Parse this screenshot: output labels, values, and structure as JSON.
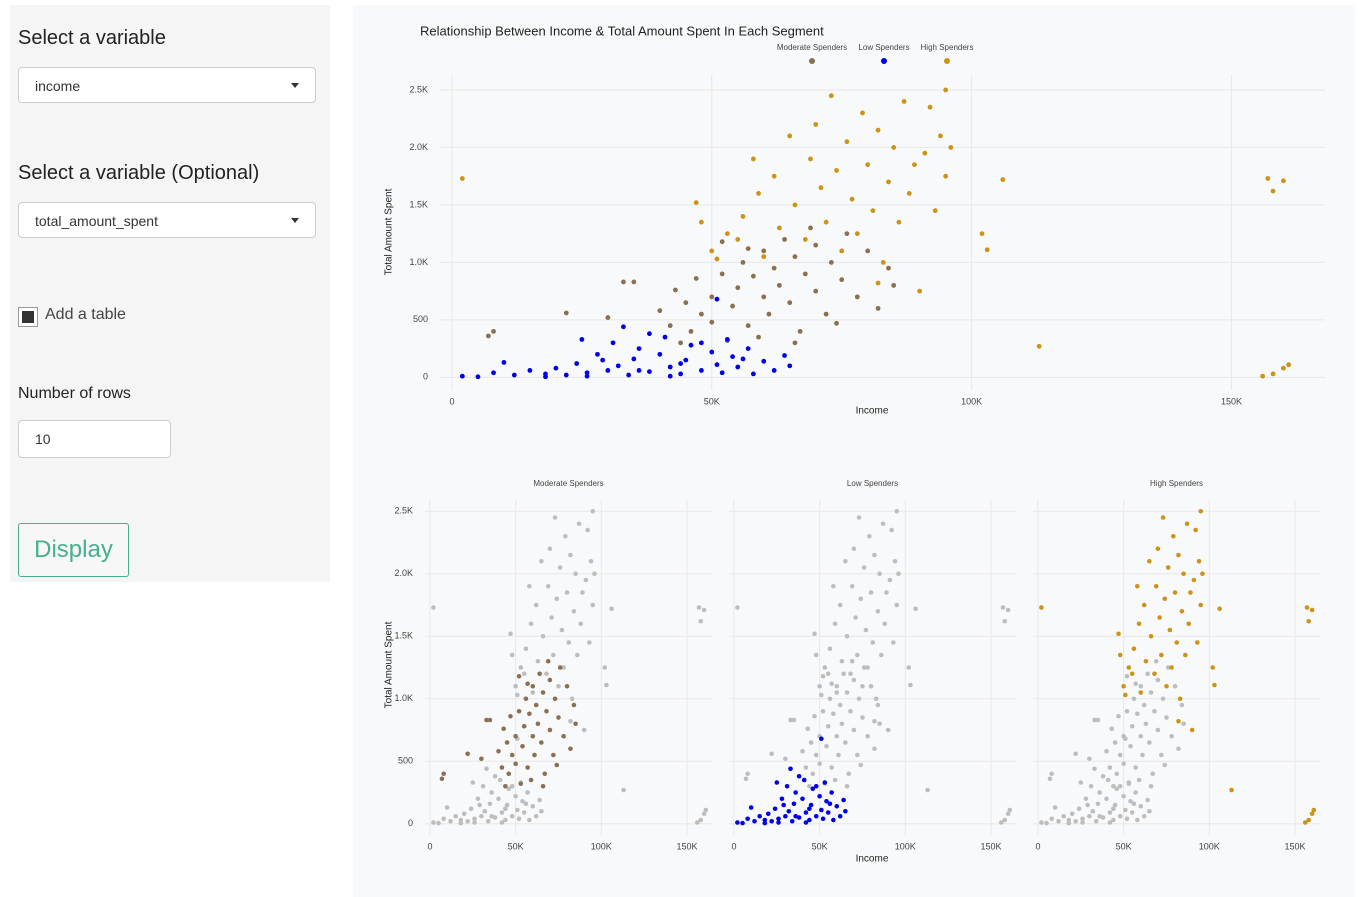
{
  "sidebar": {
    "variable_label": "Select a variable",
    "variable_value": "income",
    "optional_label": "Select a variable (Optional)",
    "optional_value": "total_amount_spent",
    "table_label": "Add a table",
    "table_checked": true,
    "rows_label": "Number of rows",
    "rows_value": 10,
    "button": "Display"
  },
  "chart_data": {
    "type": "scatter",
    "title": "Relationship Between Income & Total Amount Spent In Each Segment",
    "x_label": "Income",
    "y_label": "Total Amount Spent",
    "legend": "top",
    "grid": true,
    "xlim": [
      -2300,
      168000
    ],
    "ylim": [
      -110,
      2630
    ],
    "xticks": [
      0,
      {
        "value": 50000,
        "label": "50K"
      },
      {
        "value": 100000,
        "label": "100K"
      },
      {
        "value": 150000,
        "label": "150K"
      }
    ],
    "yticks": [
      0,
      500,
      {
        "value": 1000,
        "label": "1.0K"
      },
      {
        "value": 1500,
        "label": "1.5K"
      },
      {
        "value": 2000,
        "label": "2.0K"
      },
      {
        "value": 2500,
        "label": "2.5K"
      }
    ],
    "series": [
      {
        "name": "Moderate Spenders",
        "color": "#8b6f4e",
        "x": [
          8000,
          7000,
          22000,
          30000,
          33000,
          35000,
          40000,
          42000,
          44000,
          45000,
          46000,
          48000,
          50000,
          50000,
          52000,
          53000,
          54000,
          55000,
          56000,
          57000,
          58000,
          60000,
          60000,
          61000,
          62000,
          63000,
          64000,
          65000,
          66000,
          67000,
          68000,
          70000,
          70000,
          72000,
          73000,
          75000,
          76000,
          78000,
          80000,
          82000,
          84000,
          85000,
          57000,
          47000,
          43000,
          59000,
          69000,
          74000,
          52000,
          66000
        ],
        "y": [
          400,
          360,
          560,
          520,
          830,
          830,
          580,
          450,
          300,
          650,
          400,
          550,
          480,
          700,
          900,
          320,
          620,
          780,
          1000,
          450,
          880,
          700,
          1100,
          550,
          950,
          800,
          1200,
          650,
          1050,
          400,
          900,
          750,
          1150,
          550,
          1000,
          850,
          1250,
          700,
          1100,
          600,
          950,
          800,
          1120,
          860,
          760,
          350,
          1300,
          470,
          1180,
          300
        ]
      },
      {
        "name": "Low Spenders",
        "color": "#0000ee",
        "x": [
          2000,
          5000,
          8000,
          10000,
          12000,
          15000,
          18000,
          20000,
          22000,
          24000,
          26000,
          28000,
          30000,
          31000,
          32000,
          34000,
          35000,
          36000,
          38000,
          40000,
          41000,
          42000,
          44000,
          45000,
          46000,
          48000,
          50000,
          51000,
          52000,
          54000,
          55000,
          57000,
          58000,
          60000,
          62000,
          64000,
          65000,
          25000,
          38000,
          26000,
          33000,
          51000,
          44000,
          18000,
          56000,
          48000,
          29000,
          42000,
          36000,
          53000
        ],
        "y": [
          10,
          5,
          40,
          130,
          20,
          60,
          30,
          80,
          20,
          120,
          40,
          200,
          60,
          300,
          100,
          20,
          160,
          250,
          50,
          200,
          350,
          90,
          30,
          150,
          280,
          60,
          220,
          110,
          40,
          180,
          90,
          250,
          30,
          140,
          60,
          190,
          100,
          330,
          380,
          10,
          440,
          680,
          120,
          5,
          160,
          300,
          150,
          10,
          60,
          330
        ]
      },
      {
        "name": "High Spenders",
        "color": "#cc9316",
        "x": [
          2000,
          47000,
          48000,
          50000,
          51000,
          53000,
          55000,
          56000,
          58000,
          59000,
          60000,
          62000,
          63000,
          65000,
          66000,
          68000,
          69000,
          70000,
          71000,
          72000,
          73000,
          74000,
          75000,
          76000,
          77000,
          78000,
          79000,
          80000,
          81000,
          82000,
          83000,
          84000,
          85000,
          86000,
          87000,
          88000,
          89000,
          90000,
          91000,
          92000,
          93000,
          94000,
          95000,
          96000,
          102000,
          103000,
          106000,
          113000,
          157000,
          158000,
          160000,
          156000,
          158000,
          160000,
          161000,
          95000,
          82000
        ],
        "y": [
          1730,
          1520,
          1350,
          1100,
          1030,
          1250,
          1200,
          1400,
          1900,
          1600,
          1050,
          1750,
          1300,
          2100,
          1500,
          1200,
          1900,
          2200,
          1650,
          1350,
          2450,
          1800,
          1100,
          2050,
          1550,
          1250,
          2300,
          1850,
          1450,
          2150,
          1000,
          1700,
          2000,
          1350,
          2400,
          1600,
          1850,
          750,
          1950,
          2350,
          1450,
          2100,
          1750,
          2000,
          1250,
          1110,
          1720,
          270,
          1730,
          1620,
          1710,
          10,
          30,
          80,
          110,
          2500,
          820
        ]
      }
    ],
    "facets": {
      "xlim": [
        -2900,
        164600
      ],
      "ylim": [
        -90,
        2590
      ],
      "xticks": [
        0,
        {
          "value": 50000,
          "label": "50K"
        },
        {
          "value": 100000,
          "label": "100K"
        },
        {
          "value": 150000,
          "label": "150K"
        }
      ],
      "yticks": [
        0,
        500,
        {
          "value": 1000,
          "label": "1.0K"
        },
        {
          "value": 1500,
          "label": "1.5K"
        },
        {
          "value": 2000,
          "label": "2.0K"
        },
        {
          "value": 2500,
          "label": "2.5K"
        }
      ],
      "other_color": "#bdbdbd"
    }
  }
}
